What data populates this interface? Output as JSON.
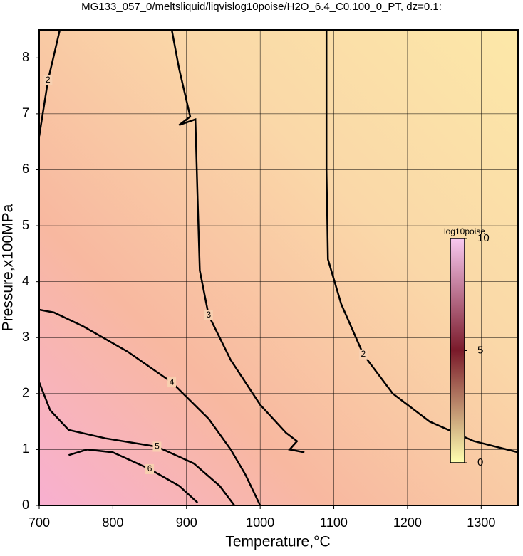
{
  "chart_data": {
    "type": "contour",
    "title": "MG133_057_0/meltsliquid/liqvislog10poise/H2O_6.4_C0.100_0_PT, dz=0.1:",
    "x_label": "Temperature,°C",
    "y_label": "Pressure,x100MPa",
    "xlim": [
      700,
      1350
    ],
    "ylim": [
      0,
      8.5
    ],
    "xticks": [
      700,
      800,
      900,
      1000,
      1100,
      1200,
      1300
    ],
    "yticks": [
      0,
      1,
      2,
      3,
      4,
      5,
      6,
      7,
      8
    ],
    "grid": true,
    "line_color": "#000000",
    "contours": [
      {
        "level": 2,
        "x": [
          1090,
          1090,
          1092,
          1110,
          1140,
          1180,
          1230,
          1290,
          1350
        ],
        "y": [
          8.5,
          6.0,
          4.4,
          3.6,
          2.7,
          2.0,
          1.5,
          1.15,
          0.95
        ]
      },
      {
        "level": 3,
        "x": [
          880,
          890,
          905,
          890,
          912,
          915,
          918,
          930,
          960,
          1000,
          1035,
          1050,
          1040,
          1060
        ],
        "y": [
          8.5,
          7.8,
          6.95,
          6.8,
          6.9,
          5.5,
          4.2,
          3.4,
          2.6,
          1.8,
          1.3,
          1.15,
          1.0,
          0.95
        ]
      },
      {
        "level": 4,
        "x": [
          700,
          720,
          760,
          820,
          880,
          930,
          960,
          980,
          1000
        ],
        "y": [
          3.5,
          3.45,
          3.2,
          2.75,
          2.2,
          1.55,
          1.0,
          0.55,
          0.0
        ]
      },
      {
        "level": 5,
        "x": [
          700,
          715,
          740,
          790,
          860,
          910,
          945,
          965
        ],
        "y": [
          2.2,
          1.7,
          1.35,
          1.2,
          1.05,
          0.75,
          0.35,
          0.0
        ]
      },
      {
        "level": 6,
        "x": [
          740,
          765,
          800,
          850,
          890,
          915
        ],
        "y": [
          0.9,
          1.0,
          0.95,
          0.65,
          0.35,
          0.05
        ]
      },
      {
        "level": 2,
        "x": [
          700,
          712,
          728
        ],
        "y": [
          6.6,
          7.6,
          8.5
        ]
      }
    ],
    "colorbar": {
      "label": "log10poise",
      "lim": [
        0,
        10
      ],
      "ticks": [
        0,
        5,
        10
      ],
      "colors": [
        "#ffffb0",
        "#7a1a2a",
        "#f8c8f0"
      ]
    }
  }
}
